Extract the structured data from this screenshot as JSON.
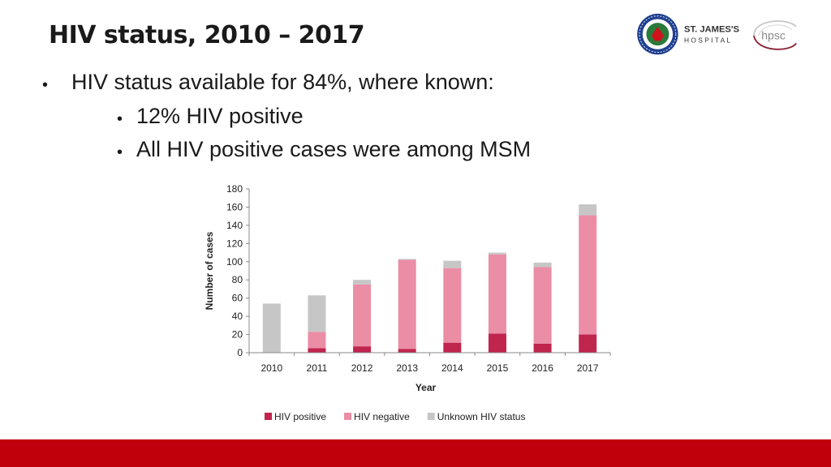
{
  "slide": {
    "title": "HIV status, 2010 – 2017",
    "bullets": {
      "main": "HIV status available for 84%, where known:",
      "sub1": "12% HIV positive",
      "sub2": "All HIV positive cases were among MSM"
    },
    "bullet_glyph": "•"
  },
  "logos": {
    "hospital_line1": "ST. JAMES'S",
    "hospital_line2": "HOSPITAL",
    "hpsc": "hpsc"
  },
  "colors": {
    "positive": "#c0254e",
    "negative": "#eb8da5",
    "unknown": "#c6c6c6",
    "accent_bar": "#c0000b"
  },
  "chart_data": {
    "type": "bar",
    "stacked": true,
    "categories": [
      "2010",
      "2011",
      "2012",
      "2013",
      "2014",
      "2015",
      "2016",
      "2017"
    ],
    "series": [
      {
        "name": "HIV positive",
        "values": [
          0,
          5,
          7,
          4,
          11,
          21,
          10,
          20
        ]
      },
      {
        "name": "HIV negative",
        "values": [
          0,
          18,
          68,
          98,
          82,
          87,
          84,
          131
        ]
      },
      {
        "name": "Unknown HIV status",
        "values": [
          54,
          40,
          5,
          1,
          8,
          2,
          5,
          12
        ]
      }
    ],
    "title": "",
    "xlabel": "Year",
    "ylabel": "Number of cases",
    "ylim": [
      0,
      180
    ],
    "yticks": [
      0,
      20,
      40,
      60,
      80,
      100,
      120,
      140,
      160,
      180
    ],
    "legend_position": "bottom"
  }
}
